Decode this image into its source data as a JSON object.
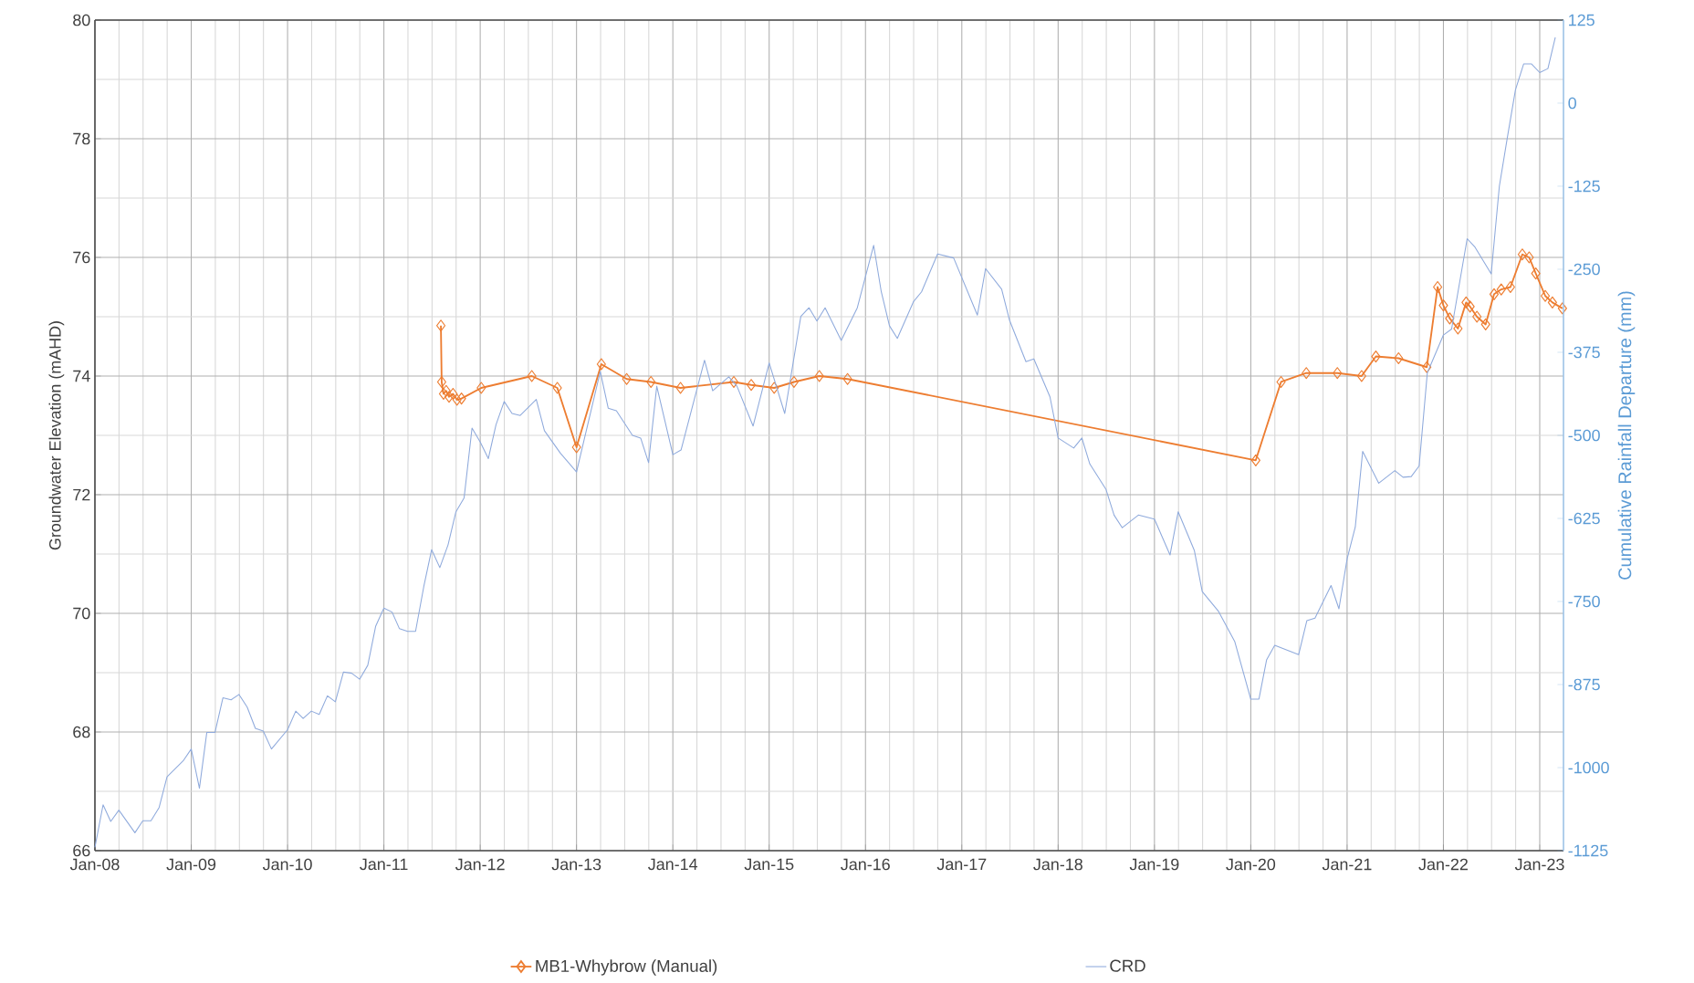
{
  "chart_data": {
    "type": "line",
    "ylabel": "Groundwater Elevation (mAHD)",
    "y2label": "Cumulative Rainfall Departure (mm)",
    "xlim": [
      "2008-01",
      "2023-04"
    ],
    "xticks": [
      {
        "value": "2008-01",
        "label": "Jan-08"
      },
      {
        "value": "2009-01",
        "label": "Jan-09"
      },
      {
        "value": "2010-01",
        "label": "Jan-10"
      },
      {
        "value": "2011-01",
        "label": "Jan-11"
      },
      {
        "value": "2012-01",
        "label": "Jan-12"
      },
      {
        "value": "2013-01",
        "label": "Jan-13"
      },
      {
        "value": "2014-01",
        "label": "Jan-14"
      },
      {
        "value": "2015-01",
        "label": "Jan-15"
      },
      {
        "value": "2016-01",
        "label": "Jan-16"
      },
      {
        "value": "2017-01",
        "label": "Jan-17"
      },
      {
        "value": "2018-01",
        "label": "Jan-18"
      },
      {
        "value": "2019-01",
        "label": "Jan-19"
      },
      {
        "value": "2020-01",
        "label": "Jan-20"
      },
      {
        "value": "2021-01",
        "label": "Jan-21"
      },
      {
        "value": "2022-01",
        "label": "Jan-22"
      },
      {
        "value": "2023-01",
        "label": "Jan-23"
      }
    ],
    "ylim": [
      66,
      80
    ],
    "yticks": [
      66,
      68,
      70,
      72,
      74,
      76,
      78,
      80
    ],
    "y2lim": [
      -1125,
      125
    ],
    "y2ticks": [
      -1125,
      -1000,
      -875,
      -750,
      -625,
      -500,
      -375,
      -250,
      -125,
      0,
      125
    ],
    "grid": true,
    "legend": "bottom",
    "series": [
      {
        "name": "MB1-Whybrow (Manual)",
        "color": "#ed7d31",
        "marker": "diamond",
        "x": [
          "2011-08-05",
          "2011-08-08",
          "2011-08-15",
          "2011-08-25",
          "2011-09-05",
          "2011-09-20",
          "2011-10-05",
          "2011-10-22",
          "2012-01-05",
          "2012-07-15",
          "2012-10-20",
          "2013-01-01",
          "2013-04-05",
          "2013-07-10",
          "2013-10-10",
          "2014-01-30",
          "2014-08-20",
          "2014-10-25",
          "2015-01-20",
          "2015-04-05",
          "2015-07-10",
          "2015-10-25",
          "2020-01-20",
          "2020-04-25",
          "2020-07-30",
          "2020-11-25",
          "2021-02-25",
          "2021-04-20",
          "2021-07-15",
          "2021-10-30",
          "2021-12-10",
          "2022-01-01",
          "2022-01-25",
          "2022-02-25",
          "2022-03-28",
          "2022-04-12",
          "2022-05-08",
          "2022-06-10",
          "2022-07-12",
          "2022-08-08",
          "2022-09-12",
          "2022-10-27",
          "2022-11-22",
          "2022-12-17",
          "2023-01-22",
          "2023-02-18",
          "2023-03-28"
        ],
        "values": [
          74.85,
          73.9,
          73.7,
          73.75,
          73.65,
          73.7,
          73.6,
          73.62,
          73.8,
          74.0,
          73.8,
          72.8,
          74.2,
          73.95,
          73.9,
          73.8,
          73.9,
          73.85,
          73.8,
          73.9,
          74.0,
          73.95,
          72.58,
          73.9,
          74.05,
          74.05,
          74.0,
          74.33,
          74.3,
          74.15,
          75.5,
          75.19,
          74.97,
          74.8,
          75.24,
          75.17,
          75.0,
          74.87,
          75.38,
          75.46,
          75.5,
          76.05,
          76.0,
          75.73,
          75.35,
          75.24,
          75.14
        ]
      },
      {
        "name": "CRD",
        "color": "#8faadc",
        "marker": "none",
        "axis": "y2",
        "x": [
          "2008-01",
          "2008-02",
          "2008-03",
          "2008-04",
          "2008-06",
          "2008-07",
          "2008-08",
          "2008-09",
          "2008-10",
          "2008-12",
          "2009-01",
          "2009-02",
          "2009-03",
          "2009-04",
          "2009-05",
          "2009-06",
          "2009-07",
          "2009-08",
          "2009-09",
          "2009-10",
          "2009-11",
          "2010-01",
          "2010-02",
          "2010-03",
          "2010-04",
          "2010-05",
          "2010-06",
          "2010-07",
          "2010-08",
          "2010-09",
          "2010-10",
          "2010-11",
          "2010-12",
          "2011-01",
          "2011-02",
          "2011-03",
          "2011-04",
          "2011-05",
          "2011-06",
          "2011-07",
          "2011-08",
          "2011-09",
          "2011-10",
          "2011-11",
          "2011-12",
          "2012-01",
          "2012-02",
          "2012-03",
          "2012-04",
          "2012-05",
          "2012-06",
          "2012-08",
          "2012-09",
          "2012-11",
          "2013-01",
          "2013-04",
          "2013-05",
          "2013-06",
          "2013-08",
          "2013-09",
          "2013-10",
          "2013-11",
          "2014-01",
          "2014-02",
          "2014-05",
          "2014-06",
          "2014-08",
          "2014-09",
          "2014-11",
          "2015-01",
          "2015-03",
          "2015-05",
          "2015-06",
          "2015-07",
          "2015-08",
          "2015-10",
          "2015-12",
          "2016-02",
          "2016-03",
          "2016-04",
          "2016-05",
          "2016-07",
          "2016-08",
          "2016-10",
          "2016-12",
          "2017-03",
          "2017-04",
          "2017-06",
          "2017-07",
          "2017-09",
          "2017-10",
          "2017-12",
          "2018-01",
          "2018-03",
          "2018-04",
          "2018-05",
          "2018-07",
          "2018-08",
          "2018-09",
          "2018-11",
          "2019-01",
          "2019-03",
          "2019-04",
          "2019-06",
          "2019-07",
          "2019-09",
          "2019-11",
          "2020-01",
          "2020-02",
          "2020-03",
          "2020-04",
          "2020-07",
          "2020-08",
          "2020-09",
          "2020-11",
          "2020-12",
          "2021-01",
          "2021-02",
          "2021-03",
          "2021-05",
          "2021-07",
          "2021-08",
          "2021-09",
          "2021-10",
          "2021-11",
          "2022-01",
          "2022-02",
          "2022-04",
          "2022-05",
          "2022-07",
          "2022-08",
          "2022-09",
          "2022-10",
          "2022-11",
          "2022-12",
          "2023-01",
          "2023-02",
          "2023-03"
        ],
        "values": [
          -1120,
          -1056,
          -1081,
          -1064,
          -1098,
          -1080,
          -1080,
          -1060,
          -1014,
          -990,
          -972,
          -1031,
          -947,
          -947,
          -895,
          -898,
          -890,
          -909,
          -941,
          -945,
          -972,
          -943,
          -915,
          -926,
          -915,
          -920,
          -892,
          -901,
          -856,
          -858,
          -867,
          -846,
          -787,
          -760,
          -766,
          -791,
          -795,
          -795,
          -728,
          -672,
          -699,
          -665,
          -615,
          -594,
          -489,
          -510,
          -535,
          -484,
          -449,
          -467,
          -470,
          -446,
          -493,
          -527,
          -555,
          -404,
          -459,
          -463,
          -500,
          -504,
          -541,
          -426,
          -529,
          -522,
          -387,
          -433,
          -412,
          -426,
          -486,
          -391,
          -467,
          -321,
          -308,
          -328,
          -308,
          -357,
          -308,
          -214,
          -284,
          -335,
          -354,
          -299,
          -284,
          -227,
          -233,
          -319,
          -249,
          -280,
          -327,
          -389,
          -385,
          -442,
          -504,
          -519,
          -504,
          -543,
          -581,
          -620,
          -639,
          -620,
          -626,
          -680,
          -615,
          -673,
          -735,
          -765,
          -810,
          -897,
          -897,
          -838,
          -816,
          -830,
          -779,
          -775,
          -726,
          -761,
          -686,
          -638,
          -524,
          -572,
          -553,
          -563,
          -562,
          -546,
          -406,
          -349,
          -340,
          -204,
          -217,
          -257,
          -125,
          -50,
          20,
          59,
          59,
          46,
          52,
          99
        ]
      }
    ]
  }
}
